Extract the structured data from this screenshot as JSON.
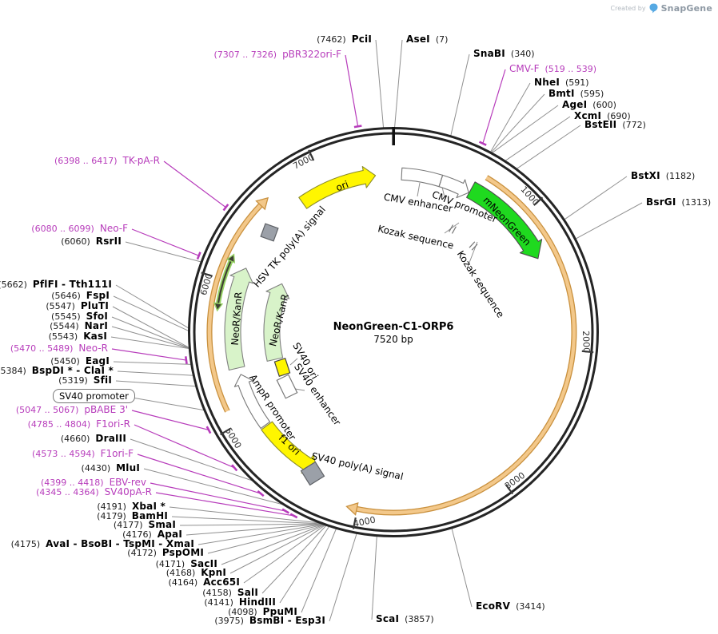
{
  "watermark": {
    "created_by": "Created by",
    "brand": "SnapGene"
  },
  "plasmid": {
    "name": "NeonGreen-C1-ORP6",
    "size_label": "7520 bp",
    "length_bp": 7520
  },
  "colors": {
    "backbone": "#252525",
    "enzyme_line": "#909090",
    "primer": "#b73cbb",
    "tick": "#3a3a3a",
    "orange_light": "#f3c88a",
    "orange_dark": "#c9913f",
    "yellow": "#fff600",
    "green_bright": "#1fd91f",
    "green_pale": "#d8f3c9",
    "dbl_arrow_green": "#97d266",
    "dbl_arrow_dark": "#3f4033",
    "gray_box": "#9ba0a8",
    "white_feature": "#ffffff"
  },
  "ticks": [
    {
      "label": "1000",
      "bp": 1000
    },
    {
      "label": "2000",
      "bp": 2000
    },
    {
      "label": "3000",
      "bp": 3000
    },
    {
      "label": "4000",
      "bp": 4000
    },
    {
      "label": "5000",
      "bp": 5000
    },
    {
      "label": "6000",
      "bp": 6000
    },
    {
      "label": "7000",
      "bp": 7000
    }
  ],
  "enzymes": [
    {
      "name": "PciI",
      "pos": "(7462)",
      "bp": 7462
    },
    {
      "name": "AseI",
      "pos": "(7)",
      "bp": 7
    },
    {
      "name": "SnaBI",
      "pos": "(340)",
      "bp": 340
    },
    {
      "name": "NheI",
      "pos": "(591)",
      "bp": 591
    },
    {
      "name": "BmtI",
      "pos": "(595)",
      "bp": 595
    },
    {
      "name": "AgeI",
      "pos": "(600)",
      "bp": 600
    },
    {
      "name": "XcmI",
      "pos": "(690)",
      "bp": 690
    },
    {
      "name": "BstEII",
      "pos": "(772)",
      "bp": 772
    },
    {
      "name": "BstXI",
      "pos": "(1182)",
      "bp": 1182
    },
    {
      "name": "BsrGI",
      "pos": "(1313)",
      "bp": 1313
    },
    {
      "name": "EcoRV",
      "pos": "(3414)",
      "bp": 3414
    },
    {
      "name": "ScaI",
      "pos": "(3857)",
      "bp": 3857
    },
    {
      "name": "BsmBI - Esp3I",
      "pos": "(3975)",
      "bp": 3975
    },
    {
      "name": "PpuMI",
      "pos": "(4098)",
      "bp": 4098
    },
    {
      "name": "HindIII",
      "pos": "(4141)",
      "bp": 4141
    },
    {
      "name": "SalI",
      "pos": "(4158)",
      "bp": 4158
    },
    {
      "name": "Acc65I",
      "pos": "(4164)",
      "bp": 4164
    },
    {
      "name": "KpnI",
      "pos": "(4168)",
      "bp": 4168
    },
    {
      "name": "SacII",
      "pos": "(4171)",
      "bp": 4171
    },
    {
      "name": "PspOMI",
      "pos": "(4172)",
      "bp": 4172
    },
    {
      "name": "AvaI - BsoBI - TspMI - XmaI",
      "pos": "(4175)",
      "bp": 4175
    },
    {
      "name": "ApaI",
      "pos": "(4176)",
      "bp": 4176
    },
    {
      "name": "SmaI",
      "pos": "(4177)",
      "bp": 4177
    },
    {
      "name": "BamHI",
      "pos": "(4179)",
      "bp": 4179
    },
    {
      "name": "XbaI *",
      "pos": "(4191)",
      "bp": 4191
    },
    {
      "name": "MluI",
      "pos": "(4430)",
      "bp": 4430
    },
    {
      "name": "DraIII",
      "pos": "(4660)",
      "bp": 4660
    },
    {
      "name": "SfiI",
      "pos": "(5319)",
      "bp": 5319
    },
    {
      "name": "BspDI * - ClaI *",
      "pos": "(5384)",
      "bp": 5384
    },
    {
      "name": "EagI",
      "pos": "(5450)",
      "bp": 5450
    },
    {
      "name": "KasI",
      "pos": "(5543)",
      "bp": 5543
    },
    {
      "name": "NarI",
      "pos": "(5544)",
      "bp": 5544
    },
    {
      "name": "SfoI",
      "pos": "(5545)",
      "bp": 5545
    },
    {
      "name": "PluTI",
      "pos": "(5547)",
      "bp": 5547
    },
    {
      "name": "FspI",
      "pos": "(5646)",
      "bp": 5646
    },
    {
      "name": "PflFI - Tth111I",
      "pos": "(5662)",
      "bp": 5662
    },
    {
      "name": "RsrII",
      "pos": "(6060)",
      "bp": 6060
    }
  ],
  "primers": [
    {
      "name": "pBR322ori-F",
      "pos": "(7307 .. 7326)",
      "bp": 7316
    },
    {
      "name": "CMV-F",
      "pos": "(519 .. 539)",
      "bp": 529
    },
    {
      "name": "TK-pA-R",
      "pos": "(6398 .. 6417)",
      "bp": 6407
    },
    {
      "name": "Neo-F",
      "pos": "(6080 .. 6099)",
      "bp": 6089
    },
    {
      "name": "Neo-R",
      "pos": "(5470 .. 5489)",
      "bp": 5479
    },
    {
      "name": "pBABE 3'",
      "pos": "(5047 .. 5067)",
      "bp": 5057
    },
    {
      "name": "F1ori-R",
      "pos": "(4785 .. 4804)",
      "bp": 4794
    },
    {
      "name": "F1ori-F",
      "pos": "(4573 .. 4594)",
      "bp": 4583
    },
    {
      "name": "EBV-rev",
      "pos": "(4399 .. 4418)",
      "bp": 4408
    },
    {
      "name": "SV40pA-R",
      "pos": "(4345 .. 4364)",
      "bp": 4354
    }
  ],
  "features": [
    {
      "label": "ori"
    },
    {
      "label": "CMV enhancer"
    },
    {
      "label": "CMV promoter"
    },
    {
      "label": "mNeonGreen"
    },
    {
      "label": "Kozak sequence"
    },
    {
      "label": "Kozak sequence"
    },
    {
      "label": "NeoR/KanR"
    },
    {
      "label": "NeoR/KanR"
    },
    {
      "label": "HSV TK poly(A) signal"
    },
    {
      "label": "SV40 ori"
    },
    {
      "label": "SV40 enhancer"
    },
    {
      "label": "AmpR promoter"
    },
    {
      "label": "f1 ori"
    },
    {
      "label": "SV40 poly(A) signal"
    },
    {
      "label": "SV40 promoter"
    }
  ]
}
